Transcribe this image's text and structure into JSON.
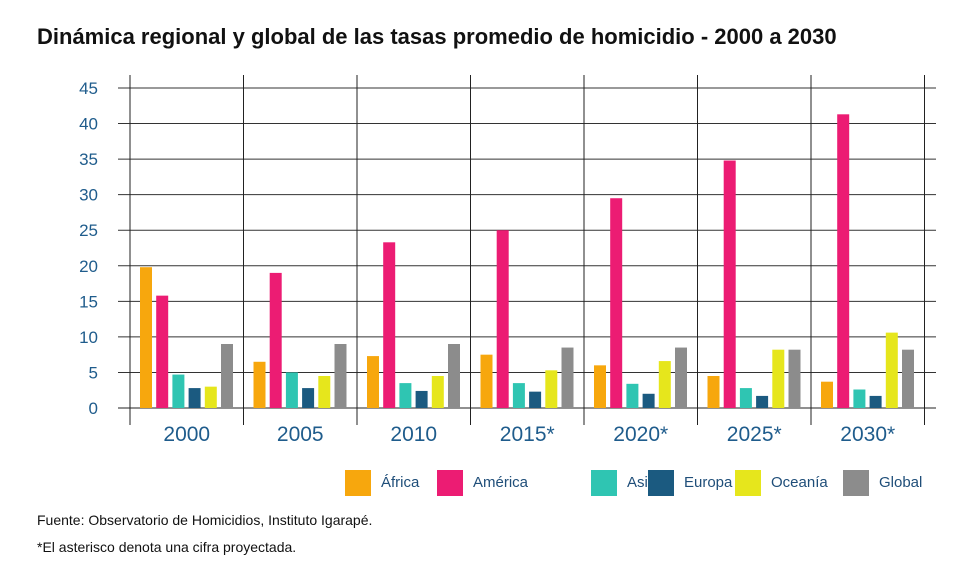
{
  "chart_data": {
    "type": "bar",
    "title": "Dinámica regional y global de las tasas promedio de homicidio - 2000 a 2030",
    "categories": [
      "2000",
      "2005",
      "2010",
      "2015*",
      "2020*",
      "2025*",
      "2030*"
    ],
    "series": [
      {
        "name": "África",
        "color": "#f7a70d",
        "values": [
          19.8,
          6.5,
          7.3,
          7.5,
          6.0,
          4.5,
          3.7
        ]
      },
      {
        "name": "América",
        "color": "#ec1c73",
        "values": [
          15.8,
          19.0,
          23.3,
          25.0,
          29.5,
          34.8,
          41.3
        ]
      },
      {
        "name": "Asia",
        "color": "#2fc5b2",
        "values": [
          4.7,
          5.0,
          3.5,
          3.5,
          3.4,
          2.8,
          2.6
        ]
      },
      {
        "name": "Europa",
        "color": "#1b5a80",
        "values": [
          2.8,
          2.8,
          2.4,
          2.3,
          2.0,
          1.7,
          1.7
        ]
      },
      {
        "name": "Oceanía",
        "color": "#e6e61c",
        "values": [
          3.0,
          4.5,
          4.5,
          5.3,
          6.6,
          8.2,
          10.6
        ]
      },
      {
        "name": "Global",
        "color": "#8c8c8c",
        "values": [
          9.0,
          9.0,
          9.0,
          8.5,
          8.5,
          8.2,
          8.2
        ]
      }
    ],
    "yticks": [
      "45",
      "40",
      "35",
      "30",
      "25",
      "20",
      "15",
      "10",
      "5",
      "0"
    ],
    "ylim": [
      0,
      45
    ],
    "grid": true,
    "legend_position": "bottom-right"
  },
  "footnotes": {
    "source": "Fuente: Observatorio de Homicidios, Instituto Igarapé.",
    "asterisk": "*El asterisco denota una cifra proyectada."
  }
}
